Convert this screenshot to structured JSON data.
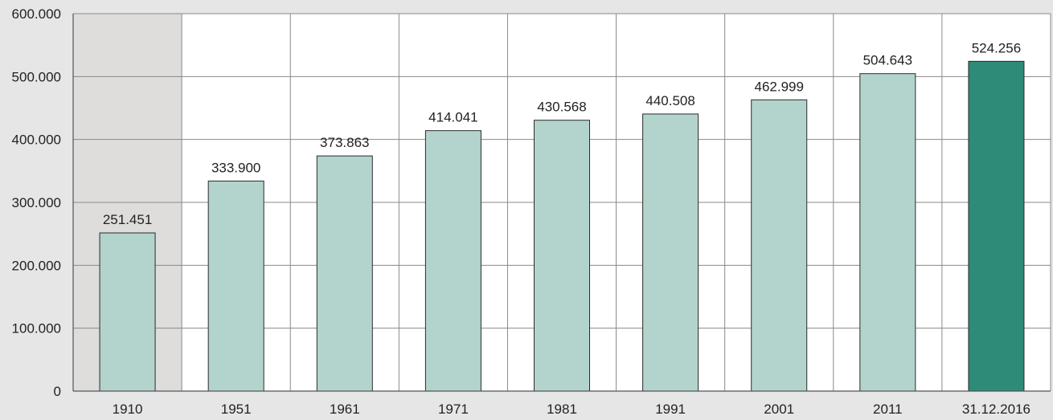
{
  "chart_data": {
    "type": "bar",
    "title": "",
    "xlabel": "",
    "ylabel": "",
    "categories": [
      "1910",
      "1951",
      "1961",
      "1971",
      "1981",
      "1991",
      "2001",
      "2011",
      "31.12.2016"
    ],
    "values": [
      251451,
      333900,
      373863,
      414041,
      430568,
      440508,
      462999,
      504643,
      524256
    ],
    "value_labels": [
      "251.451",
      "333.900",
      "373.863",
      "414.041",
      "430.568",
      "440.508",
      "462.999",
      "504.643",
      "524.256"
    ],
    "ylim": [
      0,
      600000
    ],
    "yticks": [
      0,
      100000,
      200000,
      300000,
      400000,
      500000,
      600000
    ],
    "ytick_labels": [
      "0",
      "100.000",
      "200.000",
      "300.000",
      "400.000",
      "500.000",
      "600.000"
    ],
    "grid": true,
    "legend": "none",
    "shaded_category": "1910",
    "highlighted_category": "31.12.2016"
  },
  "colors": {
    "page_background": "#e6e6e6",
    "plot_background": "#ffffff",
    "shaded_band": "#dedddc",
    "bar_fill": "#b3d4cc",
    "bar_highlight": "#2e8b78",
    "bar_stroke": "#2a2a2a",
    "grid": "#8a8a8a",
    "axis": "#555555",
    "text": "#222222"
  }
}
